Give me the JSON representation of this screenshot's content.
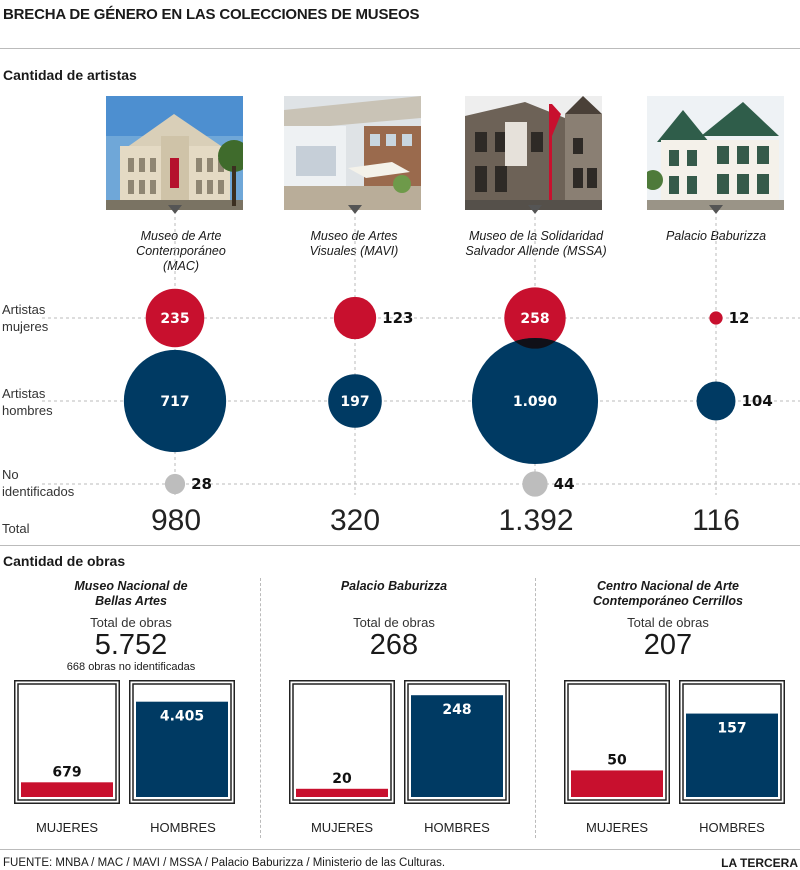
{
  "title": "BRECHA DE GÉNERO EN LAS COLECCIONES DE MUSEOS",
  "section_artists": "Cantidad de artistas",
  "section_works": "Cantidad de obras",
  "row_labels": {
    "women": [
      "Artistas",
      "mujeres"
    ],
    "men": [
      "Artistas",
      "hombres"
    ],
    "unknown": [
      "No",
      "identificados"
    ],
    "total": "Total"
  },
  "museums": [
    {
      "name_lines": [
        "Museo de Arte",
        "Contemporáneo",
        "(MAC)"
      ],
      "total_label": "980"
    },
    {
      "name_lines": [
        "Museo de Artes",
        "Visuales (MAVI)"
      ],
      "total_label": "320"
    },
    {
      "name_lines": [
        "Museo de la Solidaridad",
        "Salvador Allende (MSSA)"
      ],
      "total_label": "1.392"
    },
    {
      "name_lines": [
        "Palacio Baburizza"
      ],
      "total_label": "116"
    }
  ],
  "works": [
    {
      "title_lines": [
        "Museo Nacional de",
        "Bellas Artes"
      ],
      "total_caption": "Total de obras",
      "total_label": "5.752",
      "note": "668 obras no identificadas",
      "women_label": "679",
      "men_label": "4.405",
      "women": 679,
      "men": 4405
    },
    {
      "title_lines": [
        "Palacio Baburizza"
      ],
      "total_caption": "Total de obras",
      "total_label": "268",
      "note": "",
      "women_label": "20",
      "men_label": "248",
      "women": 20,
      "men": 248
    },
    {
      "title_lines": [
        "Centro Nacional de Arte",
        "Contemporáneo Cerrillos"
      ],
      "total_caption": "Total de obras",
      "total_label": "207",
      "note": "",
      "women_label": "50",
      "men_label": "157",
      "women": 50,
      "men": 157
    }
  ],
  "bar_labels": {
    "women": "MUJERES",
    "men": "HOMBRES"
  },
  "source": "FUENTE: MNBA / MAC / MAVI / MSSA / Palacio Baburizza / Ministerio de las Culturas.",
  "brand": "LA TERCERA",
  "colors": {
    "women": "#c8102e",
    "men": "#003a63",
    "unknown": "#bdbdbd"
  },
  "chart_data": [
    {
      "type": "scatter",
      "title": "Cantidad de artistas",
      "categories": [
        "Museo de Arte Contemporáneo (MAC)",
        "Museo de Artes Visuales (MAVI)",
        "Museo de la Solidaridad Salvador Allende (MSSA)",
        "Palacio Baburizza"
      ],
      "series": [
        {
          "name": "Artistas mujeres",
          "values": [
            235,
            123,
            258,
            12
          ]
        },
        {
          "name": "Artistas hombres",
          "values": [
            717,
            197,
            1090,
            104
          ]
        },
        {
          "name": "No identificados",
          "values": [
            28,
            null,
            44,
            null
          ]
        }
      ],
      "totals": [
        980,
        320,
        1392,
        116
      ],
      "value_labels": {
        "Artistas mujeres": [
          "235",
          "123",
          "258",
          "12"
        ],
        "Artistas hombres": [
          "717",
          "197",
          "1.090",
          "104"
        ],
        "No identificados": [
          "28",
          "",
          "44",
          ""
        ]
      }
    },
    {
      "type": "bar",
      "title": "Cantidad de obras",
      "categories": [
        "Museo Nacional de Bellas Artes",
        "Palacio Baburizza",
        "Centro Nacional de Arte Contemporáneo Cerrillos"
      ],
      "series": [
        {
          "name": "MUJERES",
          "values": [
            679,
            20,
            50
          ]
        },
        {
          "name": "HOMBRES",
          "values": [
            4405,
            248,
            157
          ]
        }
      ],
      "totals": [
        5752,
        268,
        207
      ]
    }
  ]
}
